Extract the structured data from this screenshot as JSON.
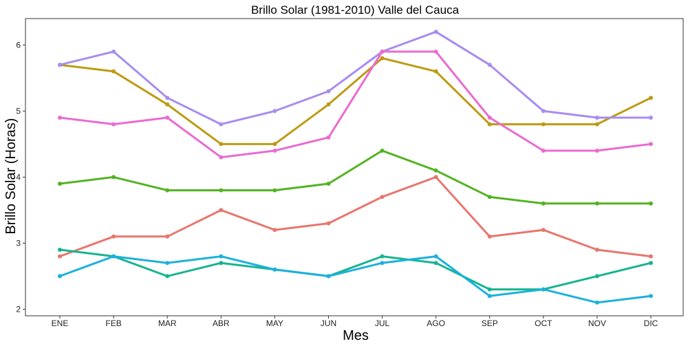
{
  "chart_data": {
    "type": "line",
    "title": "Brillo Solar (1981-2010)  Valle del Cauca",
    "xlabel": "Mes",
    "ylabel": "Brillo Solar (Horas)",
    "categories": [
      "ENE",
      "FEB",
      "MAR",
      "ABR",
      "MAY",
      "JUN",
      "JUL",
      "AGO",
      "SEP",
      "OCT",
      "NOV",
      "DIC"
    ],
    "ylim": [
      1.9,
      6.4
    ],
    "yticks": [
      2,
      3,
      4,
      5,
      6
    ],
    "grid": false,
    "legend": "none",
    "series": [
      {
        "color": "#e8766d",
        "values": [
          2.8,
          3.1,
          3.1,
          3.5,
          3.2,
          3.3,
          3.7,
          4.0,
          3.1,
          3.2,
          2.9,
          2.8
        ]
      },
      {
        "color": "#bd9b12",
        "values": [
          5.7,
          5.6,
          5.1,
          4.5,
          4.5,
          5.1,
          5.8,
          5.6,
          4.8,
          4.8,
          4.8,
          5.2
        ]
      },
      {
        "color": "#53b321",
        "values": [
          3.9,
          4.0,
          3.8,
          3.8,
          3.8,
          3.9,
          4.4,
          4.1,
          3.7,
          3.6,
          3.6,
          3.6
        ]
      },
      {
        "color": "#17b48f",
        "values": [
          2.9,
          2.8,
          2.5,
          2.7,
          2.6,
          2.5,
          2.8,
          2.7,
          2.3,
          2.3,
          2.5,
          2.7
        ]
      },
      {
        "color": "#1bb1dc",
        "values": [
          2.5,
          2.8,
          2.7,
          2.8,
          2.6,
          2.5,
          2.7,
          2.8,
          2.2,
          2.3,
          2.1,
          2.2
        ]
      },
      {
        "color": "#a88cf0",
        "values": [
          5.7,
          5.9,
          5.2,
          4.8,
          5.0,
          5.3,
          5.9,
          6.2,
          5.7,
          5.0,
          4.9,
          4.9
        ]
      },
      {
        "color": "#ea6bd0",
        "values": [
          4.9,
          4.8,
          4.9,
          4.3,
          4.4,
          4.6,
          5.9,
          5.9,
          4.9,
          4.4,
          4.4,
          4.5
        ]
      }
    ]
  }
}
